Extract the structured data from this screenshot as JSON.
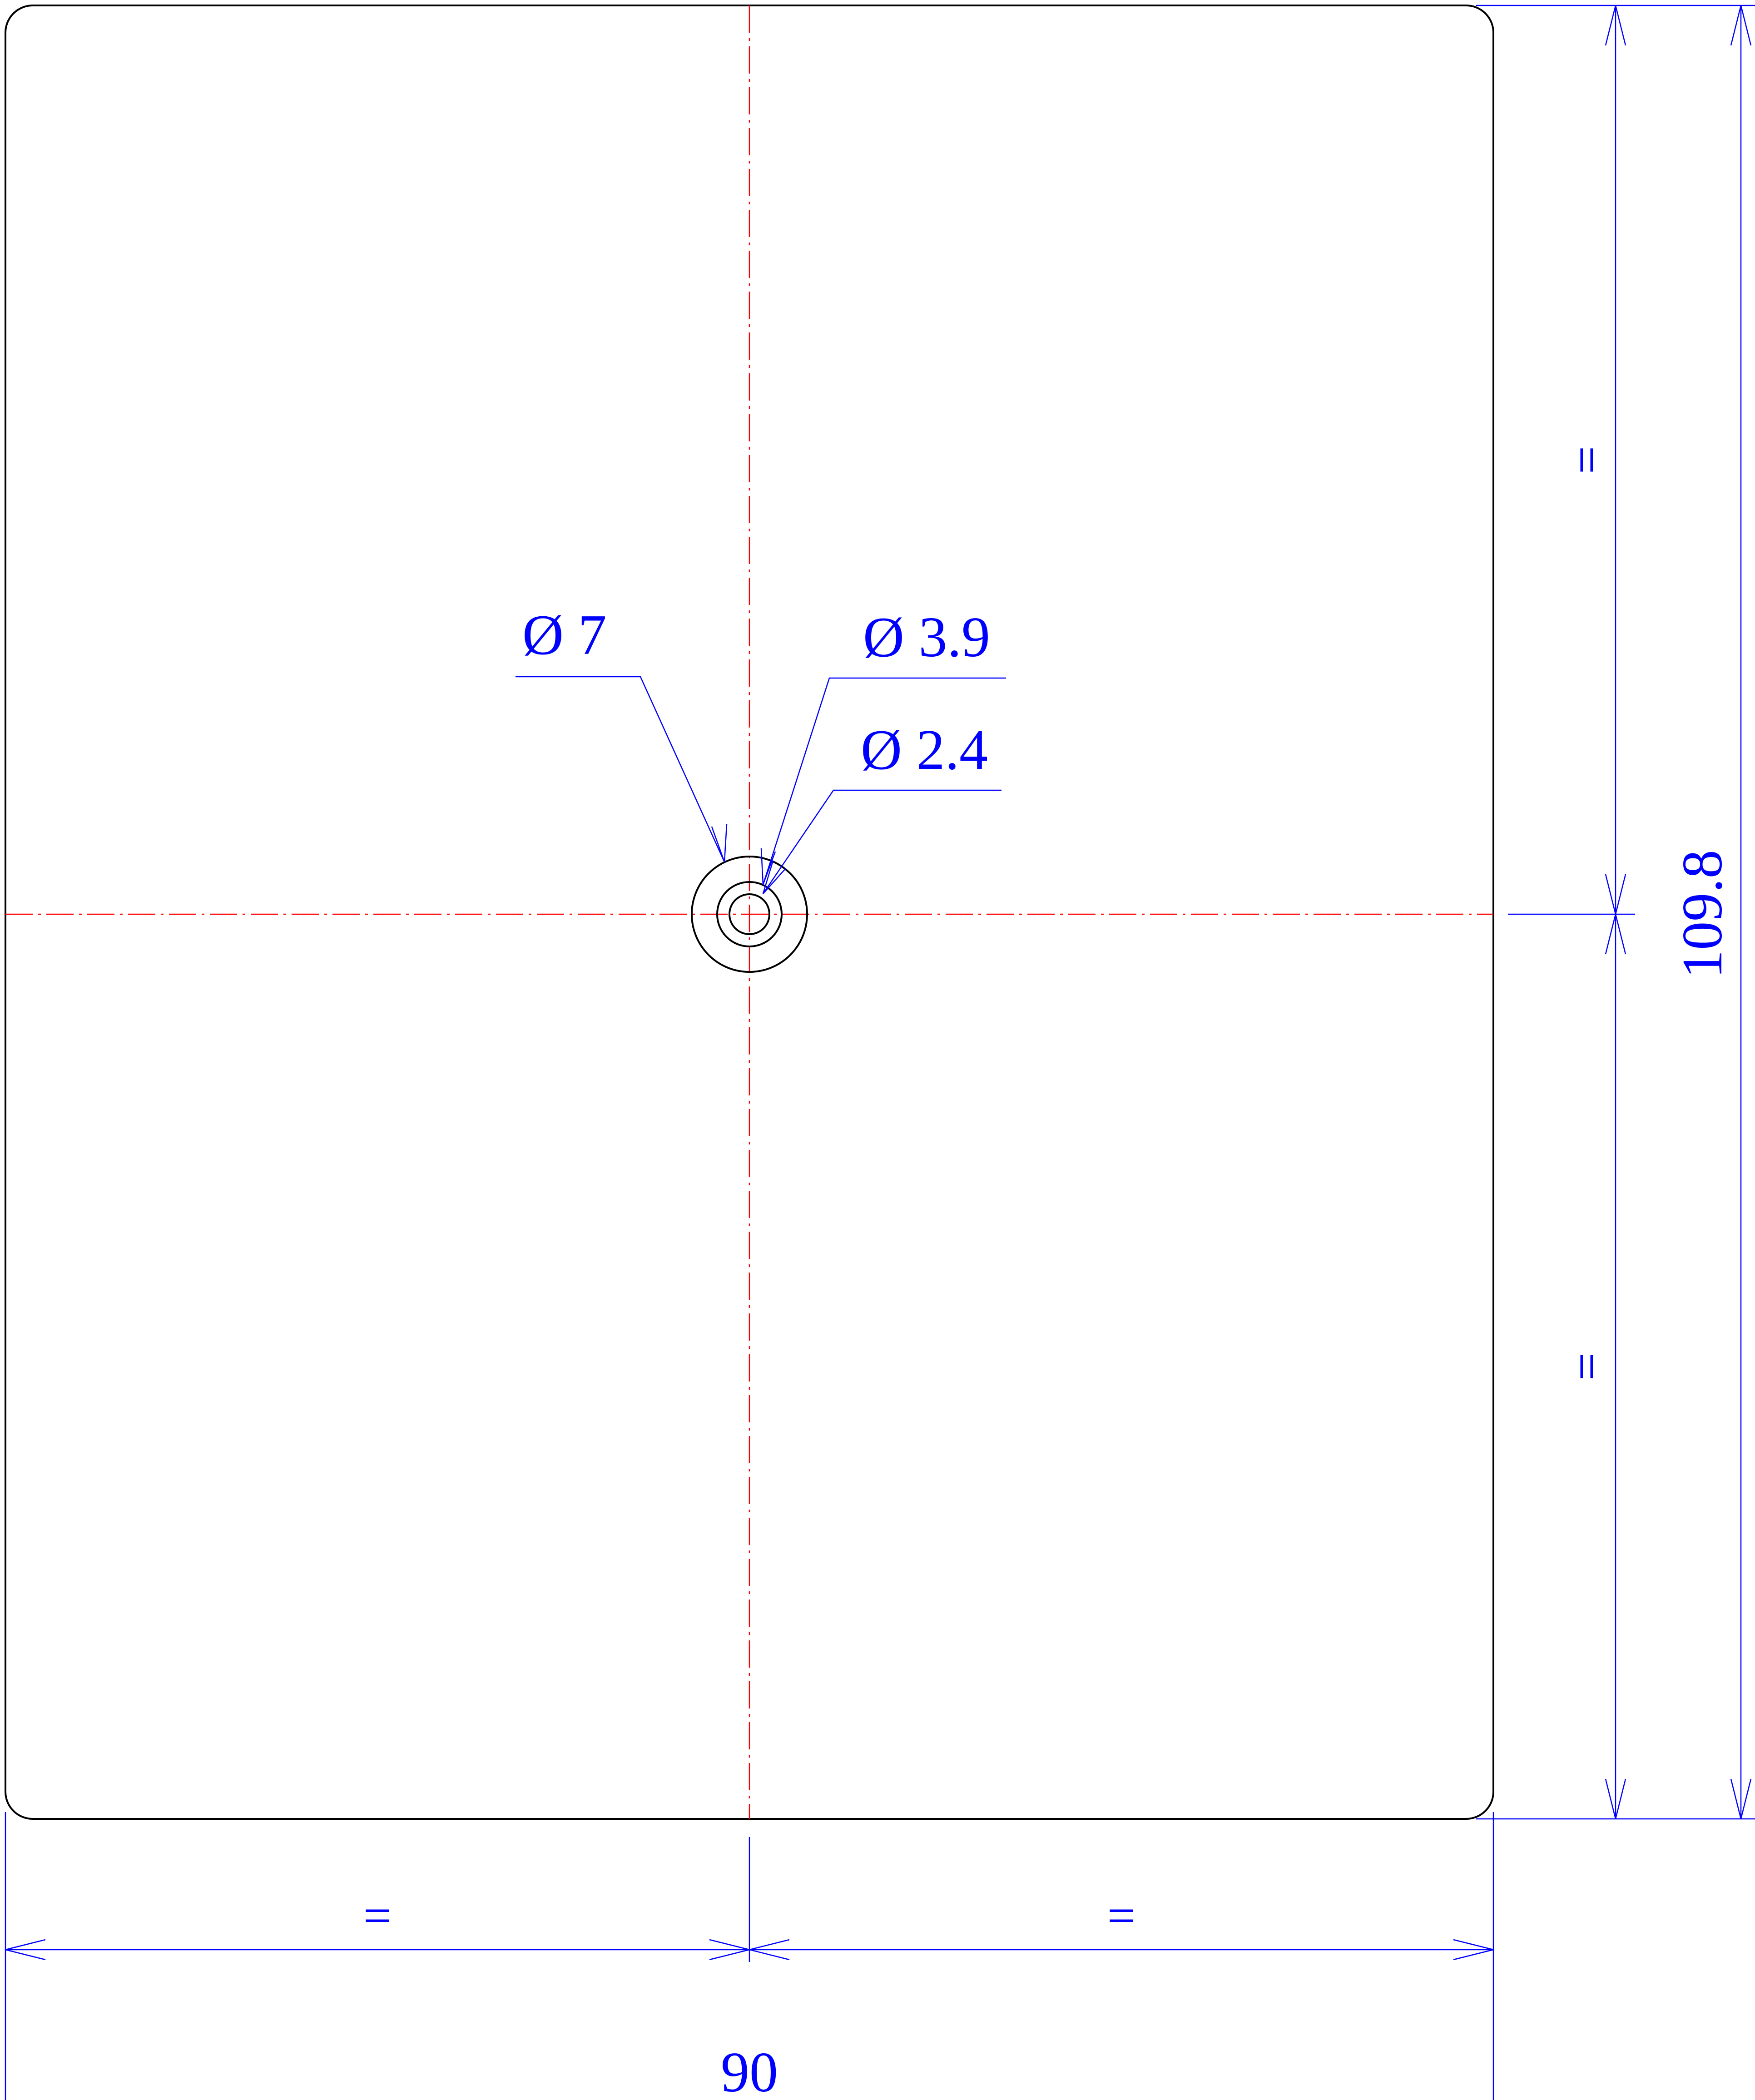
{
  "drawing": {
    "colors": {
      "outline": "#000000",
      "centerline": "#ff0000",
      "dimension": "#0000ff"
    },
    "dimensions": {
      "overall_width": "90",
      "overall_height": "109.8",
      "equal_mark": "="
    },
    "hole_callouts": [
      {
        "label": "Ø 7"
      },
      {
        "label": "Ø 3.9"
      },
      {
        "label": "Ø 2.4"
      }
    ]
  }
}
